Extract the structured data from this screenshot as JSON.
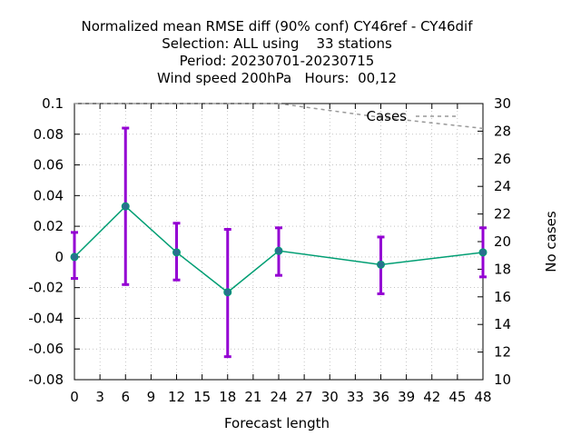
{
  "chart_data": {
    "type": "line",
    "title_lines": [
      "Normalized mean RMSE diff (90% conf) CY46ref - CY46dif",
      "Selection: ALL using    33 stations",
      "Period: 20230701-20230715",
      "Wind speed 200hPa   Hours:  00,12"
    ],
    "xlabel": "Forecast length",
    "ylabel_right": "No cases",
    "xlim": [
      0,
      48
    ],
    "ylim": [
      -0.08,
      0.1
    ],
    "y2lim": [
      10,
      30
    ],
    "x_ticks": [
      "0",
      "3",
      "6",
      "9",
      "12",
      "15",
      "18",
      "21",
      "24",
      "27",
      "30",
      "33",
      "36",
      "39",
      "42",
      "45",
      "48"
    ],
    "y_ticks": [
      "-0.08",
      "-0.06",
      "-0.04",
      "-0.02",
      "0",
      "0.02",
      "0.04",
      "0.06",
      "0.08",
      "0.1"
    ],
    "y2_ticks": [
      "10",
      "12",
      "14",
      "16",
      "18",
      "20",
      "22",
      "24",
      "26",
      "28",
      "30"
    ],
    "grid": true,
    "series": [
      {
        "color": "#009e73",
        "errorbar_color": "#9400d3",
        "x": [
          0,
          6,
          12,
          18,
          24,
          36,
          48
        ],
        "y": [
          0.0,
          0.033,
          0.003,
          -0.023,
          0.004,
          -0.005,
          0.003
        ],
        "y_low": [
          -0.014,
          -0.018,
          -0.015,
          -0.065,
          -0.012,
          -0.024,
          -0.013
        ],
        "y_high": [
          0.016,
          0.084,
          0.022,
          0.018,
          0.019,
          0.013,
          0.019
        ]
      },
      {
        "name": "Cases",
        "axis": "right",
        "color": "#999999",
        "dashed": true,
        "x": [
          0,
          6,
          12,
          18,
          24,
          36,
          48
        ],
        "y": [
          30,
          30,
          30,
          30,
          30,
          29,
          28.2
        ]
      }
    ],
    "legend": {
      "position": "top-right"
    }
  }
}
